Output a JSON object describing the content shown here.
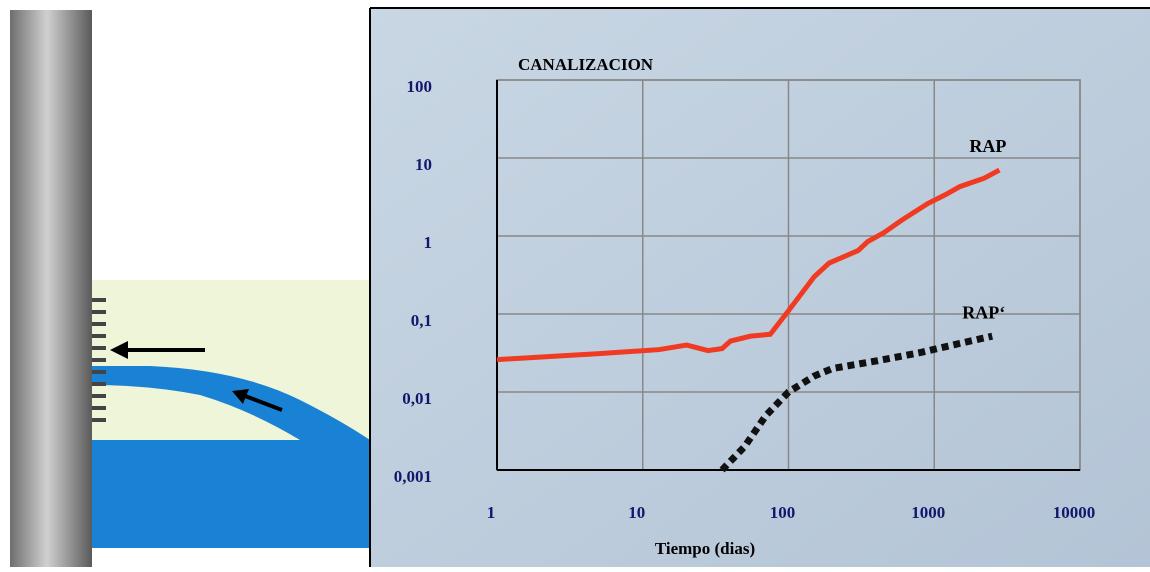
{
  "chart_data": {
    "type": "line",
    "title": "CANALIZACION",
    "x_label": "Tiempo (dias)",
    "xscale": "log",
    "yscale": "log",
    "grid": true,
    "xlim": [
      1,
      10000
    ],
    "ylim": [
      0.001,
      100
    ],
    "xticks": [
      1,
      10,
      100,
      1000,
      10000
    ],
    "yticks": [
      {
        "value": 0.001,
        "label": "0,001"
      },
      {
        "value": 0.01,
        "label": "0,01"
      },
      {
        "value": 0.1,
        "label": "0,1"
      },
      1,
      10,
      100
    ],
    "series": [
      {
        "name": "RAP",
        "color": "#f03a22",
        "style": "solid",
        "x": [
          1,
          5,
          13,
          20,
          28,
          35,
          40,
          55,
          75,
          100,
          150,
          190,
          300,
          350,
          450,
          600,
          900,
          1200,
          1500,
          2200,
          2800
        ],
        "values": [
          0.026,
          0.031,
          0.035,
          0.04,
          0.034,
          0.036,
          0.045,
          0.052,
          0.055,
          0.11,
          0.3,
          0.45,
          0.65,
          0.85,
          1.1,
          1.6,
          2.6,
          3.4,
          4.3,
          5.5,
          7
        ]
      },
      {
        "name": "RAP‘",
        "color": "#111111",
        "style": "dotted",
        "x": [
          35,
          50,
          70,
          100,
          150,
          200,
          400,
          800,
          1500,
          2500
        ],
        "values": [
          0.001,
          0.002,
          0.005,
          0.01,
          0.016,
          0.02,
          0.025,
          0.032,
          0.042,
          0.052
        ]
      }
    ]
  }
}
